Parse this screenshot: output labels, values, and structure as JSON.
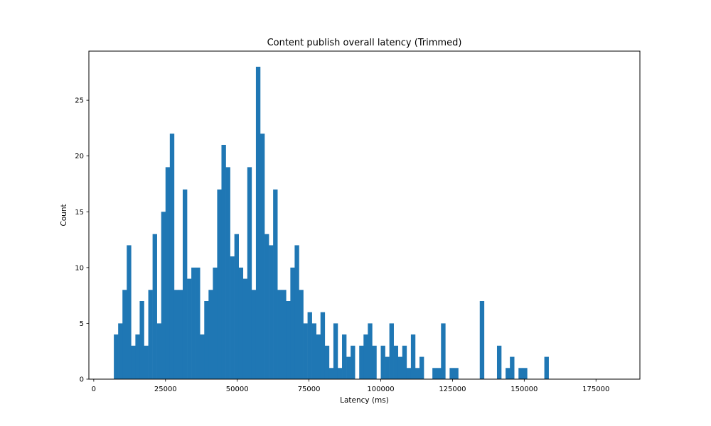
{
  "chart_data": {
    "type": "bar",
    "title": "Content publish overall latency (Trimmed)",
    "xlabel": "Latency (ms)",
    "ylabel": "Count",
    "xlim": [
      -1700,
      190300
    ],
    "ylim": [
      0,
      29.4
    ],
    "x_ticks": [
      0,
      25000,
      50000,
      75000,
      100000,
      125000,
      150000,
      175000
    ],
    "x_tick_labels": [
      "0",
      "25000",
      "50000",
      "75000",
      "100000",
      "125000",
      "150000",
      "175000"
    ],
    "y_ticks": [
      0,
      5,
      10,
      15,
      20,
      25
    ],
    "y_tick_labels": [
      "0",
      "5",
      "10",
      "15",
      "20",
      "25"
    ],
    "bins": {
      "start": 7000,
      "width": 1500
    },
    "values": [
      4,
      5,
      8,
      12,
      3,
      4,
      7,
      3,
      8,
      13,
      5,
      15,
      19,
      22,
      8,
      8,
      17,
      9,
      10,
      10,
      4,
      7,
      8,
      10,
      17,
      21,
      19,
      11,
      13,
      10,
      9,
      19,
      8,
      28,
      22,
      13,
      12,
      17,
      8,
      8,
      7,
      10,
      12,
      8,
      5,
      6,
      5,
      4,
      6,
      3,
      1,
      5,
      1,
      4,
      2,
      3,
      0,
      3,
      4,
      5,
      3,
      0,
      3,
      2,
      5,
      3,
      2,
      3,
      1,
      4,
      1,
      2,
      0,
      0,
      1,
      1,
      5,
      0,
      1,
      1,
      0,
      0,
      0,
      0,
      0,
      7,
      0,
      0,
      0,
      3,
      0,
      1,
      2,
      0,
      1,
      1,
      0,
      0,
      0,
      0,
      2
    ],
    "bar_color": "#1f77b4",
    "grid": false,
    "legend": false
  }
}
